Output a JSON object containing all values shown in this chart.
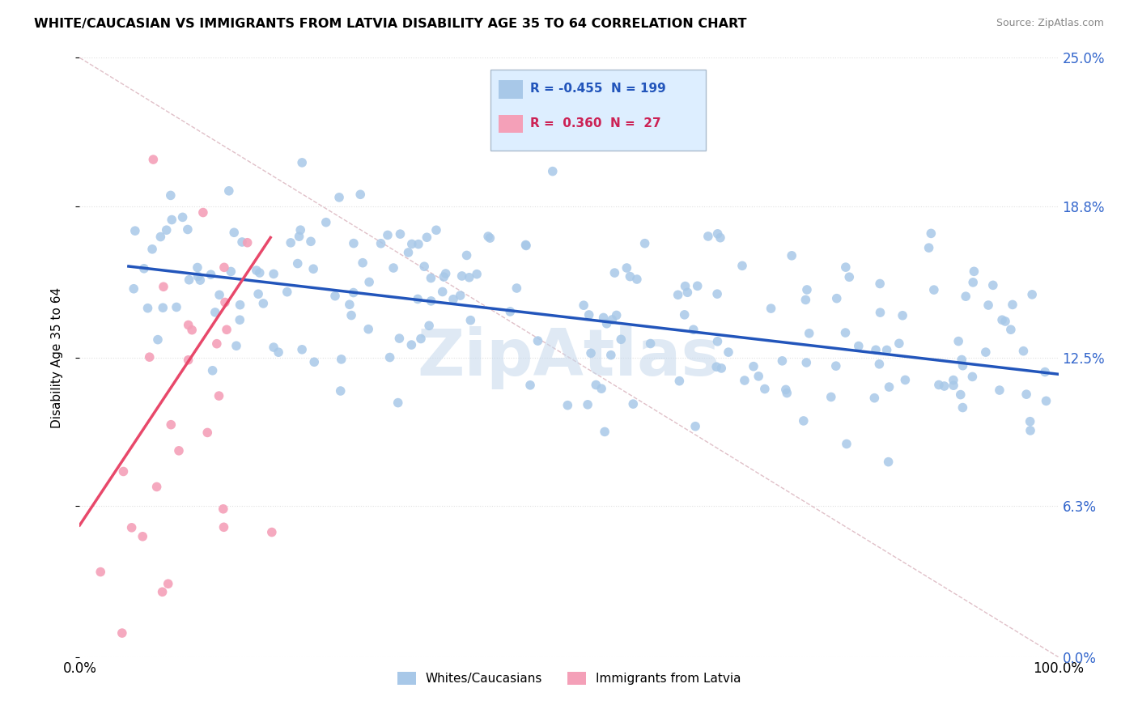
{
  "title": "WHITE/CAUCASIAN VS IMMIGRANTS FROM LATVIA DISABILITY AGE 35 TO 64 CORRELATION CHART",
  "source": "Source: ZipAtlas.com",
  "ylabel": "Disability Age 35 to 64",
  "xlim": [
    0.0,
    1.0
  ],
  "ylim": [
    0.0,
    0.25
  ],
  "ytick_vals": [
    0.0,
    0.063,
    0.125,
    0.188,
    0.25
  ],
  "ytick_labels": [
    "0.0%",
    "6.3%",
    "12.5%",
    "18.8%",
    "25.0%"
  ],
  "xtick_vals": [
    0.0,
    1.0
  ],
  "xtick_labels": [
    "0.0%",
    "100.0%"
  ],
  "watermark": "ZipAtlas",
  "series1": {
    "label": "Whites/Caucasians",
    "R": "-0.455",
    "N": "199",
    "color": "#a8c8e8",
    "line_color": "#2255bb",
    "trend_x": [
      0.05,
      1.0
    ],
    "trend_y": [
      0.163,
      0.118
    ]
  },
  "series2": {
    "label": "Immigrants from Latvia",
    "R": "0.360",
    "N": "27",
    "color": "#f4a0b8",
    "line_color": "#e8486a",
    "trend_x": [
      0.0,
      0.195
    ],
    "trend_y": [
      0.055,
      0.175
    ]
  },
  "diagonal_line": {
    "x": [
      0.0,
      1.0
    ],
    "y": [
      0.25,
      0.0
    ],
    "color": "#e0c0c8",
    "style": "--"
  },
  "legend_box_color": "#ddeeff",
  "legend_border_color": "#aabbcc",
  "grid_color": "#e0e0e0",
  "background_color": "#ffffff",
  "seed1": 42,
  "seed2": 123
}
